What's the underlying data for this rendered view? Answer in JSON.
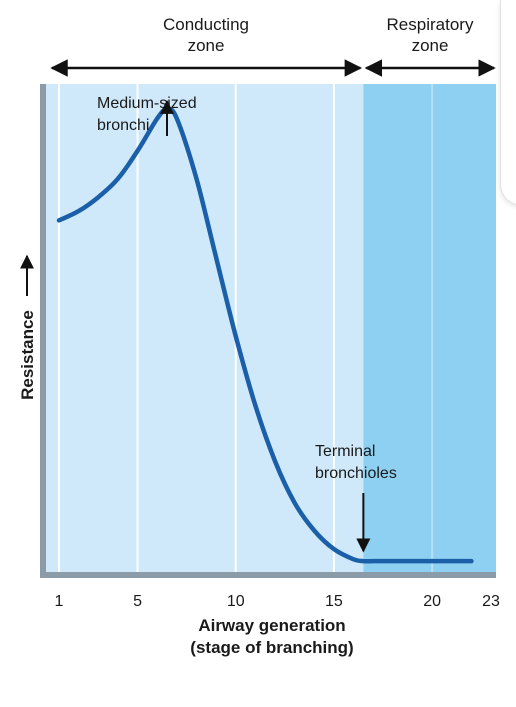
{
  "chart_data": {
    "type": "line",
    "title": "",
    "xlabel": "Airway generation",
    "xlabel_sub": "(stage of branching)",
    "ylabel": "Resistance",
    "xlim": [
      1,
      23
    ],
    "x_ticks": [
      {
        "value": 1,
        "label": "1"
      },
      {
        "value": 5,
        "label": "5"
      },
      {
        "value": 10,
        "label": "10"
      },
      {
        "value": 15,
        "label": "15"
      },
      {
        "value": 20,
        "label": "20"
      },
      {
        "value": 23,
        "label": "23"
      }
    ],
    "zones": [
      {
        "name_lines": [
          "Conducting",
          "zone"
        ],
        "from": 1,
        "to": 16.5,
        "color": "#cfe9fa"
      },
      {
        "name_lines": [
          "Respiratory",
          "zone"
        ],
        "from": 16.5,
        "to": 23,
        "color": "#8ed0f2"
      }
    ],
    "series": [
      {
        "color": "#1a5fa8",
        "x": [
          1,
          2,
          3,
          4,
          5,
          6,
          6.5,
          7,
          8,
          9,
          10,
          11,
          12,
          13,
          14,
          15,
          16,
          16.5,
          17,
          18,
          19,
          20,
          21,
          22
        ],
        "y": [
          0.74,
          0.76,
          0.79,
          0.83,
          0.89,
          0.96,
          0.98,
          0.96,
          0.83,
          0.66,
          0.49,
          0.34,
          0.22,
          0.13,
          0.07,
          0.03,
          0.008,
          0.004,
          0.004,
          0.004,
          0.004,
          0.004,
          0.004,
          0.004
        ]
      }
    ],
    "annotations": [
      {
        "text_lines": [
          "Medium-sized",
          "bronchi"
        ],
        "x": 6.5,
        "y": 0.98
      },
      {
        "text_lines": [
          "Terminal",
          "bronchioles"
        ],
        "x": 16.5,
        "y": 0.004
      }
    ],
    "grid": true
  }
}
